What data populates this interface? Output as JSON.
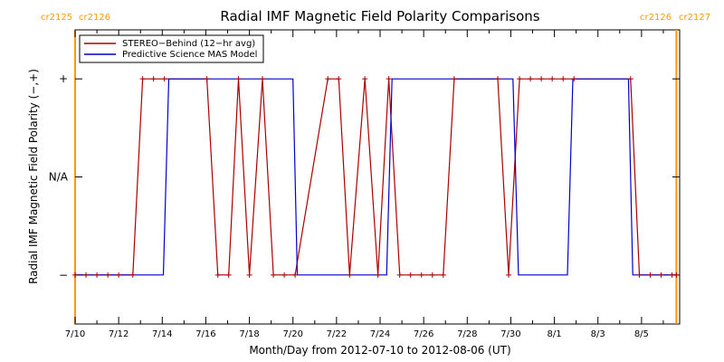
{
  "chart_data": {
    "type": "line",
    "title": "Radial IMF Magnetic Field Polarity Comparisons",
    "xlabel": "Month/Day from 2012-07-10 to 2012-08-06 (UT)",
    "ylabel": "Radial IMF Magnetic Field Polarity (−,+)",
    "x_unit": "days since 2012-07-10 00:00 UT",
    "xlim": [
      0,
      27.75
    ],
    "ylim": [
      -1.5,
      1.5
    ],
    "x_ticks": [
      {
        "value": 0,
        "label": "7/10"
      },
      {
        "value": 2,
        "label": "7/12"
      },
      {
        "value": 4,
        "label": "7/14"
      },
      {
        "value": 6,
        "label": "7/16"
      },
      {
        "value": 8,
        "label": "7/18"
      },
      {
        "value": 10,
        "label": "7/20"
      },
      {
        "value": 12,
        "label": "7/22"
      },
      {
        "value": 14,
        "label": "7/24"
      },
      {
        "value": 16,
        "label": "7/26"
      },
      {
        "value": 18,
        "label": "7/28"
      },
      {
        "value": 20,
        "label": "7/30"
      },
      {
        "value": 22,
        "label": "8/1"
      },
      {
        "value": 24,
        "label": "8/3"
      },
      {
        "value": 26,
        "label": "8/5"
      }
    ],
    "y_ticks": [
      {
        "value": 1,
        "label": "+"
      },
      {
        "value": 0,
        "label": "N/A"
      },
      {
        "value": -1,
        "label": "−"
      }
    ],
    "carrington_markers": [
      {
        "x": 0.0,
        "left_label": "cr2125",
        "right_label": "cr2126",
        "color": "#ff9900"
      },
      {
        "x": 27.6,
        "left_label": "cr2126",
        "right_label": "cr2127",
        "color": "#ff9900"
      }
    ],
    "legend": {
      "placement": "top-left",
      "entries": [
        {
          "name": "STEREO−Behind (12−hr avg)",
          "color": "#aa0000"
        },
        {
          "name": "Predictive Science MAS Model",
          "color": "#0000cc"
        }
      ]
    },
    "series": [
      {
        "name": "STEREO−Behind (12−hr avg)",
        "color": "#aa0000",
        "markers": true,
        "points": [
          [
            0.0,
            -1
          ],
          [
            0.5,
            -1
          ],
          [
            1.0,
            -1
          ],
          [
            1.5,
            -1
          ],
          [
            2.0,
            -1
          ],
          [
            2.65,
            -1
          ],
          [
            3.1,
            1
          ],
          [
            3.6,
            1
          ],
          [
            4.1,
            1
          ],
          [
            6.05,
            1
          ],
          [
            6.55,
            -1
          ],
          [
            7.05,
            -1
          ],
          [
            7.5,
            1
          ],
          [
            8.0,
            -1
          ],
          [
            8.6,
            1
          ],
          [
            9.1,
            -1
          ],
          [
            9.6,
            -1
          ],
          [
            10.1,
            -1
          ],
          [
            11.6,
            1
          ],
          [
            12.1,
            1
          ],
          [
            12.6,
            -1
          ],
          [
            13.3,
            1
          ],
          [
            13.9,
            -1
          ],
          [
            14.4,
            1
          ],
          [
            14.9,
            -1
          ],
          [
            15.4,
            -1
          ],
          [
            15.9,
            -1
          ],
          [
            16.4,
            -1
          ],
          [
            16.9,
            -1
          ],
          [
            17.4,
            1
          ],
          [
            19.4,
            1
          ],
          [
            19.9,
            -1
          ],
          [
            20.4,
            1
          ],
          [
            20.9,
            1
          ],
          [
            21.4,
            1
          ],
          [
            21.9,
            1
          ],
          [
            22.4,
            1
          ],
          [
            22.9,
            1
          ],
          [
            25.5,
            1
          ],
          [
            25.9,
            -1
          ],
          [
            26.4,
            -1
          ],
          [
            26.9,
            -1
          ],
          [
            27.4,
            -1
          ],
          [
            27.6,
            -1
          ]
        ]
      },
      {
        "name": "Predictive Science MAS Model",
        "color": "#0000cc",
        "markers": false,
        "points": [
          [
            0.0,
            -1
          ],
          [
            4.05,
            -1
          ],
          [
            4.3,
            1
          ],
          [
            10.0,
            1
          ],
          [
            10.2,
            -1
          ],
          [
            14.3,
            -1
          ],
          [
            14.55,
            1
          ],
          [
            20.1,
            1
          ],
          [
            20.35,
            -1
          ],
          [
            22.6,
            -1
          ],
          [
            22.85,
            1
          ],
          [
            25.4,
            1
          ],
          [
            25.6,
            -1
          ],
          [
            27.6,
            -1
          ]
        ]
      }
    ]
  }
}
